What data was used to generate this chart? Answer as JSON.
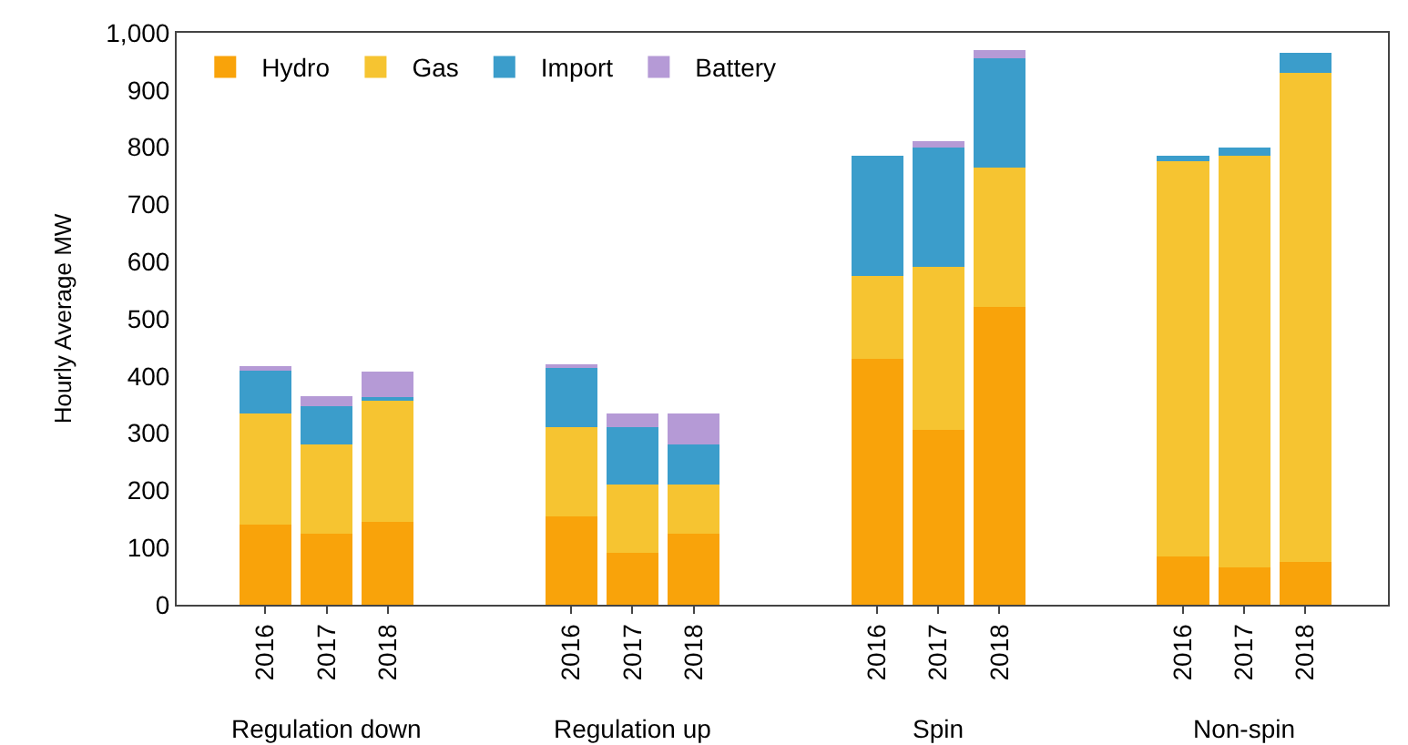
{
  "chart_data": {
    "type": "bar",
    "stacked": true,
    "ylabel": "Hourly Average MW",
    "categories": [
      "2016",
      "2017",
      "2018",
      null,
      null,
      "2016",
      "2017",
      "2018",
      null,
      null,
      "2016",
      "2017",
      "2018",
      null,
      null,
      "2016",
      "2017",
      "2018"
    ],
    "series": [
      {
        "name": "Hydro",
        "color": "#f9a30a",
        "values": [
          140,
          125,
          145,
          null,
          null,
          155,
          90,
          125,
          null,
          null,
          430,
          305,
          520,
          null,
          null,
          85,
          65,
          75
        ]
      },
      {
        "name": "Gas",
        "color": "#f6c431",
        "values": [
          195,
          155,
          212,
          null,
          null,
          155,
          120,
          85,
          null,
          null,
          145,
          285,
          245,
          null,
          null,
          690,
          720,
          855
        ]
      },
      {
        "name": "Import",
        "color": "#3b9dcb",
        "values": [
          75,
          67,
          6,
          null,
          null,
          105,
          100,
          70,
          null,
          null,
          210,
          210,
          190,
          null,
          null,
          10,
          15,
          35
        ]
      },
      {
        "name": "Battery",
        "color": "#b59ad6",
        "values": [
          8,
          17,
          44,
          null,
          null,
          5,
          25,
          55,
          null,
          null,
          0,
          10,
          15,
          null,
          null,
          0,
          0,
          0
        ]
      }
    ],
    "annotations": [
      "Regulation down",
      "Regulation up",
      "Spin",
      "Non-spin"
    ],
    "ylim": [
      0,
      1000
    ],
    "yticks": [
      0,
      100,
      200,
      300,
      400,
      500,
      600,
      700,
      800,
      900,
      {
        "value": 1000,
        "label": "1,000"
      }
    ],
    "legend": "top left"
  }
}
